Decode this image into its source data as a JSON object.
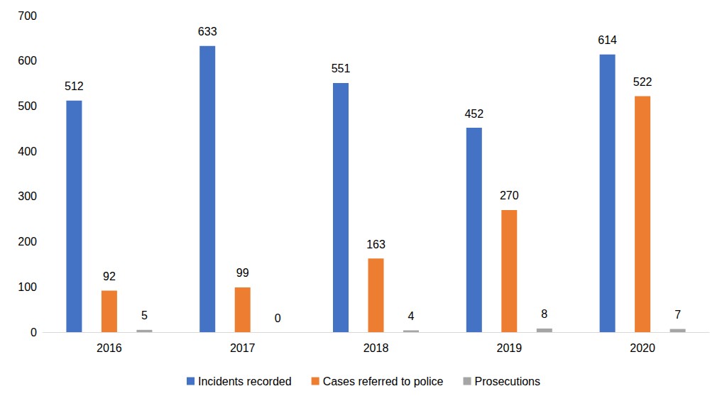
{
  "chart_data": {
    "type": "bar",
    "categories": [
      "2016",
      "2017",
      "2018",
      "2019",
      "2020"
    ],
    "series": [
      {
        "name": "Incidents recorded",
        "color": "#4472c4",
        "values": [
          512,
          633,
          551,
          452,
          614
        ]
      },
      {
        "name": "Cases referred to police",
        "color": "#ed7d31",
        "values": [
          92,
          99,
          163,
          270,
          522
        ]
      },
      {
        "name": "Prosecutions",
        "color": "#a5a5a5",
        "values": [
          5,
          0,
          4,
          8,
          7
        ]
      }
    ],
    "ylim": [
      0,
      700
    ],
    "yticks": [
      0,
      100,
      200,
      300,
      400,
      500,
      600,
      700
    ],
    "grid": false,
    "legend": "bottom",
    "data_labels": true
  }
}
